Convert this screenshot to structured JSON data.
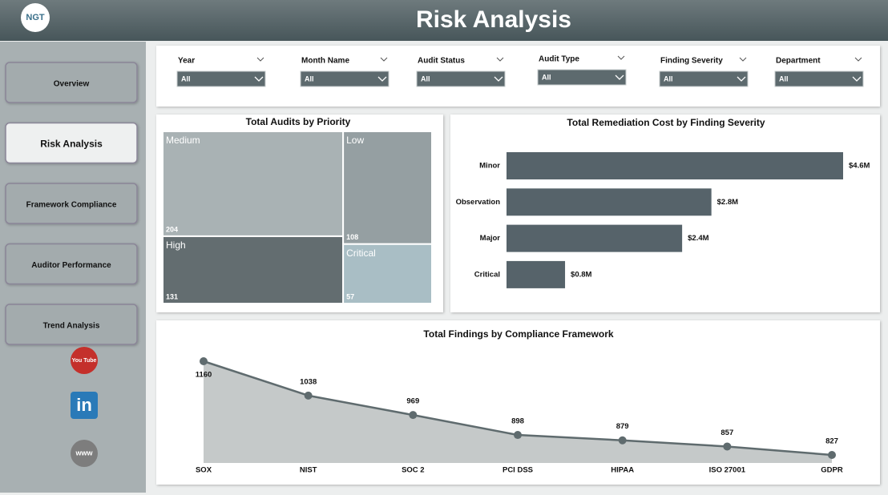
{
  "header": {
    "title": "Risk Analysis",
    "logo": "NGT"
  },
  "nav": [
    "Overview",
    "Risk Analysis",
    "Framework Compliance",
    "Auditor Performance",
    "Trend Analysis"
  ],
  "social": [
    "You Tube",
    "in",
    "www"
  ],
  "filters": [
    {
      "label": "Year",
      "value": "All"
    },
    {
      "label": "Month Name",
      "value": "All"
    },
    {
      "label": "Audit Status",
      "value": "All"
    },
    {
      "label": "Audit Type",
      "value": "All"
    },
    {
      "label": "Finding Severity",
      "value": "All"
    },
    {
      "label": "Department",
      "value": "All"
    }
  ],
  "chart_data": [
    {
      "type": "treemap",
      "title": "Total Audits by Priority",
      "categories": [
        "Medium",
        "High",
        "Low",
        "Critical"
      ],
      "values": [
        204,
        131,
        108,
        57
      ],
      "colors": [
        "#a9b2b4",
        "#636d70",
        "#959fa2",
        "#a9bec5"
      ]
    },
    {
      "type": "hbar",
      "title": "Total Remediation Cost by Finding Severity",
      "categories": [
        "Minor",
        "Observation",
        "Major",
        "Critical"
      ],
      "values": [
        4.6,
        2.8,
        2.4,
        0.8
      ],
      "value_labels": [
        "$4.6M",
        "$2.8M",
        "$2.4M",
        "$0.8M"
      ],
      "color": "#56636a"
    },
    {
      "type": "area",
      "title": "Total Findings by Compliance Framework",
      "categories": [
        "SOX",
        "NIST",
        "SOC 2",
        "PCI DSS",
        "HIPAA",
        "ISO 27001",
        "GDPR"
      ],
      "values": [
        1160,
        1038,
        969,
        898,
        879,
        857,
        827
      ],
      "color": "#5f6b6e"
    }
  ]
}
